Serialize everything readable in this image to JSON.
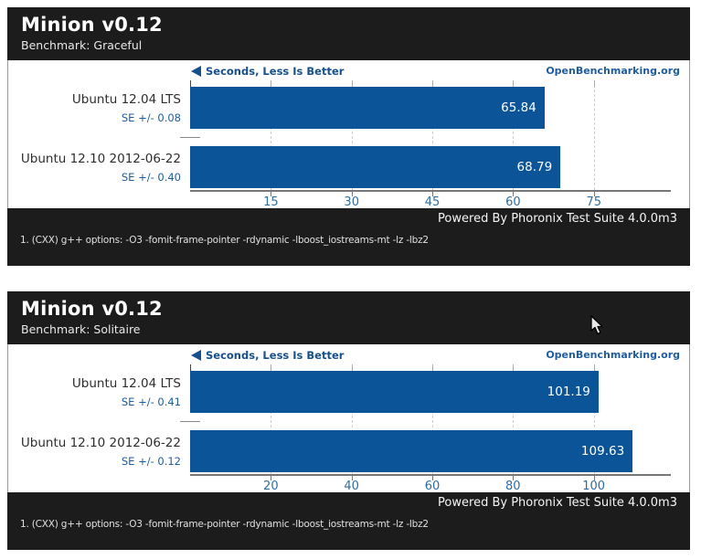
{
  "chart_data": [
    {
      "type": "bar",
      "title": "Minion v0.12",
      "subtitle": "Benchmark: Graceful",
      "unit_label": "Seconds, Less Is Better",
      "org_link": "OpenBenchmarking.org",
      "categories": [
        "Ubuntu 12.04 LTS",
        "Ubuntu 12.10 2012-06-22"
      ],
      "rows": [
        {
          "label": "Ubuntu 12.04 LTS",
          "se": "SE +/- 0.08",
          "value": 65.84,
          "value_text": "65.84"
        },
        {
          "label": "Ubuntu 12.10 2012-06-22",
          "se": "SE +/- 0.40",
          "value": 68.79,
          "value_text": "68.79"
        }
      ],
      "axis_ticks": [
        15,
        30,
        45,
        60,
        75
      ],
      "axis_max": 89.3,
      "xlabel": "Seconds",
      "grid": "dashed-vertical",
      "bar_color": "#0b5498",
      "accent_color": "#1f5c9d",
      "powered_by": "Powered By Phoronix Test Suite 4.0.0m3",
      "footnote": "1. (CXX) g++ options: -O3 -fomit-frame-pointer -rdynamic -lboost_iostreams-mt -lz -lbz2"
    },
    {
      "type": "bar",
      "title": "Minion v0.12",
      "subtitle": "Benchmark: Solitaire",
      "unit_label": "Seconds, Less Is Better",
      "org_link": "OpenBenchmarking.org",
      "categories": [
        "Ubuntu 12.04 LTS",
        "Ubuntu 12.10 2012-06-22"
      ],
      "rows": [
        {
          "label": "Ubuntu 12.04 LTS",
          "se": "SE +/- 0.41",
          "value": 101.19,
          "value_text": "101.19"
        },
        {
          "label": "Ubuntu 12.10 2012-06-22",
          "se": "SE +/- 0.12",
          "value": 109.63,
          "value_text": "109.63"
        }
      ],
      "axis_ticks": [
        20,
        40,
        60,
        80,
        100
      ],
      "axis_max": 119.1,
      "xlabel": "Seconds",
      "grid": "dashed-vertical",
      "bar_color": "#0b5498",
      "accent_color": "#1f5c9d",
      "powered_by": "Powered By Phoronix Test Suite 4.0.0m3",
      "footnote": "1. (CXX) g++ options: -O3 -fomit-frame-pointer -rdynamic -lboost_iostreams-mt -lz -lbz2"
    }
  ]
}
